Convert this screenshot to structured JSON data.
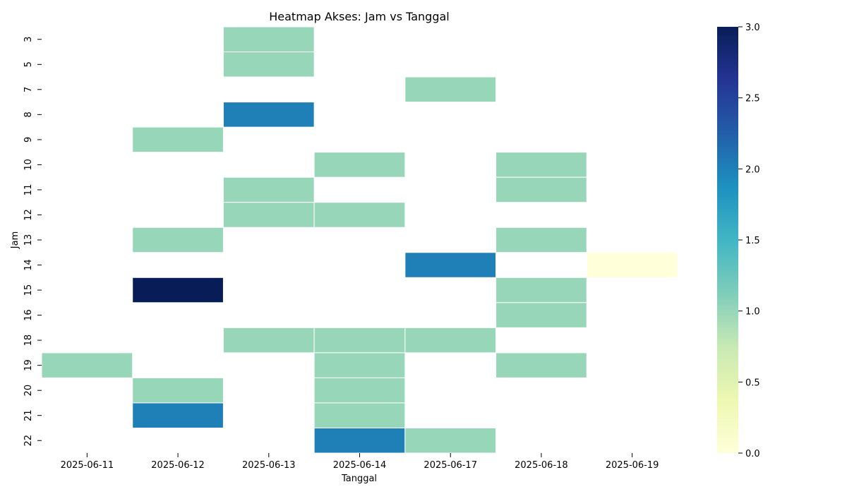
{
  "chart_data": {
    "type": "heatmap",
    "title": "Heatmap Akses: Jam vs Tanggal",
    "xlabel": "Tanggal",
    "ylabel": "Jam",
    "x_categories": [
      "2025-06-11",
      "2025-06-12",
      "2025-06-13",
      "2025-06-14",
      "2025-06-17",
      "2025-06-18",
      "2025-06-19"
    ],
    "y_categories": [
      "3",
      "5",
      "7",
      "8",
      "9",
      "10",
      "11",
      "12",
      "13",
      "14",
      "15",
      "16",
      "18",
      "19",
      "20",
      "21",
      "22"
    ],
    "values": [
      [
        null,
        null,
        1,
        null,
        null,
        null,
        null
      ],
      [
        null,
        null,
        1,
        null,
        null,
        null,
        null
      ],
      [
        null,
        null,
        null,
        null,
        1,
        null,
        null
      ],
      [
        null,
        null,
        2,
        null,
        null,
        null,
        null
      ],
      [
        null,
        1,
        null,
        null,
        null,
        null,
        null
      ],
      [
        null,
        null,
        null,
        1,
        null,
        1,
        null
      ],
      [
        null,
        null,
        1,
        null,
        null,
        1,
        null
      ],
      [
        null,
        null,
        1,
        1,
        null,
        null,
        null
      ],
      [
        null,
        1,
        null,
        null,
        null,
        1,
        null
      ],
      [
        null,
        null,
        null,
        null,
        2,
        null,
        0
      ],
      [
        null,
        3,
        null,
        null,
        null,
        1,
        null
      ],
      [
        null,
        null,
        null,
        null,
        null,
        1,
        null
      ],
      [
        null,
        null,
        1,
        1,
        1,
        null,
        null
      ],
      [
        1,
        null,
        null,
        1,
        null,
        1,
        null
      ],
      [
        null,
        1,
        null,
        1,
        null,
        null,
        null
      ],
      [
        null,
        2,
        null,
        1,
        null,
        null,
        null
      ],
      [
        null,
        null,
        null,
        2,
        1,
        null,
        null
      ]
    ],
    "colorbar": {
      "min": 0,
      "max": 3,
      "ticks": [
        "0.0",
        "0.5",
        "1.0",
        "1.5",
        "2.0",
        "2.5",
        "3.0"
      ],
      "colormap": "YlGnBu"
    },
    "grid": false
  }
}
